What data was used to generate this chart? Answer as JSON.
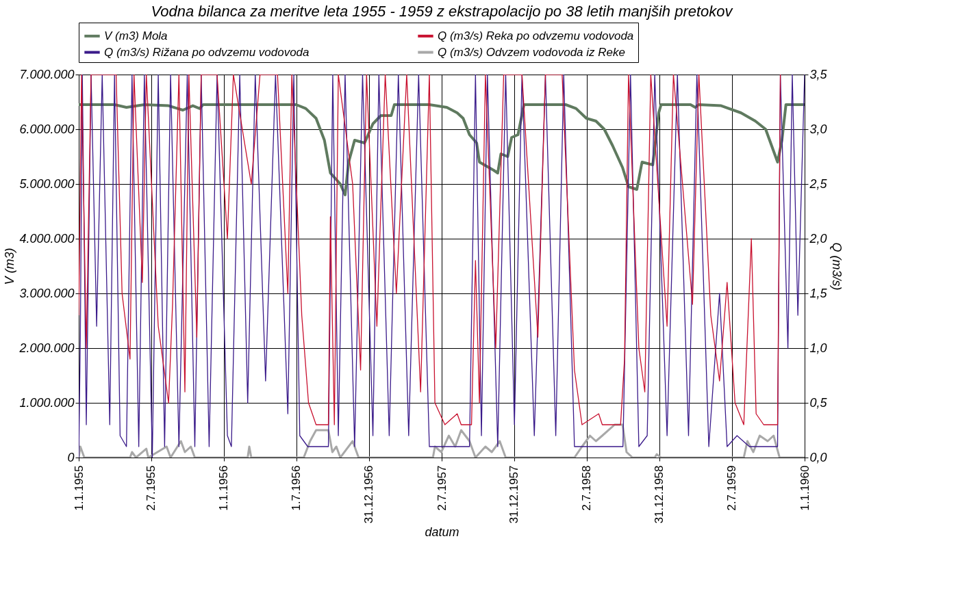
{
  "chart_data": {
    "type": "line",
    "title": "Vodna bilanca za meritve leta 1955 - 1959 z ekstrapolacijo po 38 letih manjših pretokov",
    "xlabel": "datum",
    "ylabel": "V (m3)",
    "y2label": "Q (m3/s)",
    "xlim": [
      "1955-01-01",
      "1960-01-01"
    ],
    "xticks": [
      {
        "value": "1955-01-01",
        "label": "1.1.1955"
      },
      {
        "value": "1955-07-02",
        "label": "2.7.1955"
      },
      {
        "value": "1956-01-01",
        "label": "1.1.1956"
      },
      {
        "value": "1956-07-01",
        "label": "1.7.1956"
      },
      {
        "value": "1956-12-31",
        "label": "31.12.1956"
      },
      {
        "value": "1957-07-02",
        "label": "2.7.1957"
      },
      {
        "value": "1957-12-31",
        "label": "31.12.1957"
      },
      {
        "value": "1958-07-02",
        "label": "2.7.1958"
      },
      {
        "value": "1958-12-31",
        "label": "31.12.1958"
      },
      {
        "value": "1959-07-02",
        "label": "2.7.1959"
      },
      {
        "value": "1960-01-01",
        "label": "1.1.1960"
      }
    ],
    "ylim": [
      0,
      7000000
    ],
    "yticks": [
      {
        "value": 0,
        "label": "0"
      },
      {
        "value": 1000000,
        "label": "1.000.000"
      },
      {
        "value": 2000000,
        "label": "2.000.000"
      },
      {
        "value": 3000000,
        "label": "3.000.000"
      },
      {
        "value": 4000000,
        "label": "4.000.000"
      },
      {
        "value": 5000000,
        "label": "5.000.000"
      },
      {
        "value": 6000000,
        "label": "6.000.000"
      },
      {
        "value": 7000000,
        "label": "7.000.000"
      }
    ],
    "y2lim": [
      0,
      3.5
    ],
    "y2ticks": [
      {
        "value": 0,
        "label": "0,0"
      },
      {
        "value": 0.5,
        "label": "0,5"
      },
      {
        "value": 1,
        "label": "1,0"
      },
      {
        "value": 1.5,
        "label": "1,5"
      },
      {
        "value": 2,
        "label": "2,0"
      },
      {
        "value": 2.5,
        "label": "2,5"
      },
      {
        "value": 3,
        "label": "3,0"
      },
      {
        "value": 3.5,
        "label": "3,5"
      }
    ],
    "grid": true,
    "legend": "top",
    "marker": "none",
    "line_style": "solid",
    "series": [
      {
        "name": "V (m3) Mola",
        "color": "#5f7a5f",
        "x": [
          "1955-01-01",
          "1955-04-01",
          "1955-05-01",
          "1955-06-15",
          "1955-08-15",
          "1955-09-20",
          "1955-10-15",
          "1955-11-01",
          "1955-11-10",
          "1956-07-01",
          "1956-07-25",
          "1956-08-20",
          "1956-09-10",
          "1956-09-25",
          "1956-10-20",
          "1956-11-01",
          "1956-11-10",
          "1956-11-25",
          "1956-12-20",
          "1957-01-10",
          "1957-01-30",
          "1957-02-25",
          "1957-03-05",
          "1957-06-01",
          "1957-07-15",
          "1957-08-10",
          "1957-08-25",
          "1957-09-10",
          "1957-09-28",
          "1957-10-05",
          "1957-11-10",
          "1957-11-20",
          "1957-11-28",
          "1957-12-15",
          "1957-12-25",
          "1958-01-10",
          "1958-01-25",
          "1958-05-10",
          "1958-06-05",
          "1958-07-01",
          "1958-07-25",
          "1958-08-15",
          "1958-09-05",
          "1958-09-30",
          "1958-10-15",
          "1958-11-05",
          "1958-11-18",
          "1958-12-15",
          "1958-12-30",
          "1959-01-05",
          "1959-03-20",
          "1959-04-01",
          "1959-04-10",
          "1959-06-05",
          "1959-07-25",
          "1959-08-30",
          "1959-09-25",
          "1959-10-10",
          "1959-10-25",
          "1959-11-05",
          "1959-11-15",
          "1960-01-01"
        ],
        "values": [
          6450000,
          6450000,
          6400000,
          6450000,
          6430000,
          6350000,
          6430000,
          6380000,
          6450000,
          6450000,
          6380000,
          6200000,
          5800000,
          5200000,
          5000000,
          4800000,
          5400000,
          5800000,
          5750000,
          6100000,
          6250000,
          6250000,
          6450000,
          6450000,
          6400000,
          6300000,
          6200000,
          5900000,
          5750000,
          5400000,
          5250000,
          5200000,
          5550000,
          5500000,
          5850000,
          5900000,
          6450000,
          6450000,
          6380000,
          6200000,
          6150000,
          6000000,
          5700000,
          5300000,
          4950000,
          4900000,
          5400000,
          5350000,
          6300000,
          6450000,
          6450000,
          6400000,
          6450000,
          6430000,
          6300000,
          6150000,
          6000000,
          5700000,
          5400000,
          5800000,
          6450000,
          6450000
        ]
      },
      {
        "name": "Q (m3/s) Reka po odvzemu vodovoda",
        "color": "#c8102e",
        "axis": "y2",
        "x": [
          "1955-01-01",
          "1955-01-08",
          "1955-01-20",
          "1955-02-01",
          "1955-04-05",
          "1955-04-20",
          "1955-05-10",
          "1955-05-20",
          "1955-06-10",
          "1955-06-20",
          "1955-07-20",
          "1955-08-15",
          "1955-08-25",
          "1955-09-10",
          "1955-09-25",
          "1955-10-05",
          "1955-10-25",
          "1955-11-05",
          "1955-12-15",
          "1956-01-10",
          "1956-01-25",
          "1956-03-10",
          "1956-04-01",
          "1956-05-15",
          "1956-06-10",
          "1956-06-20",
          "1956-07-15",
          "1956-08-01",
          "1956-08-20",
          "1956-09-20",
          "1956-09-25",
          "1956-10-05",
          "1956-10-15",
          "1956-11-20",
          "1956-12-10",
          "1956-12-25",
          "1957-01-20",
          "1957-02-10",
          "1957-03-10",
          "1957-04-05",
          "1957-05-10",
          "1957-06-01",
          "1957-06-15",
          "1957-07-10",
          "1957-08-10",
          "1957-08-20",
          "1957-09-15",
          "1957-09-25",
          "1957-10-05",
          "1957-10-20",
          "1957-11-15",
          "1957-12-05",
          "1958-01-20",
          "1958-03-01",
          "1958-03-20",
          "1958-05-01",
          "1958-06-01",
          "1958-06-20",
          "1958-08-01",
          "1958-08-10",
          "1958-09-25",
          "1958-10-05",
          "1958-10-15",
          "1958-11-10",
          "1958-11-25",
          "1958-12-10",
          "1959-01-20",
          "1959-02-05",
          "1959-03-25",
          "1959-04-10",
          "1959-05-10",
          "1959-06-01",
          "1959-06-20",
          "1959-07-10",
          "1959-08-01",
          "1959-08-20",
          "1959-09-01",
          "1959-09-20",
          "1959-10-25",
          "1959-11-01"
        ],
        "values": [
          1.3,
          3.5,
          1.0,
          3.5,
          3.5,
          1.5,
          0.9,
          3.5,
          1.6,
          3.5,
          1.2,
          0.5,
          1.4,
          3.5,
          0.6,
          3.5,
          1.1,
          3.5,
          3.5,
          2.0,
          3.5,
          2.5,
          3.5,
          3.5,
          1.5,
          3.5,
          1.3,
          0.5,
          0.3,
          0.3,
          2.2,
          0.3,
          3.5,
          2.5,
          0.8,
          3.5,
          1.2,
          3.5,
          1.5,
          3.5,
          0.6,
          3.5,
          0.5,
          0.3,
          0.4,
          0.3,
          0.3,
          1.8,
          0.5,
          3.5,
          1.0,
          3.5,
          3.5,
          1.1,
          3.5,
          3.5,
          0.8,
          0.3,
          0.4,
          0.3,
          0.3,
          0.9,
          3.5,
          1.0,
          0.6,
          3.5,
          1.2,
          3.5,
          1.4,
          3.5,
          1.3,
          0.7,
          1.6,
          0.5,
          0.3,
          2.0,
          0.4,
          0.3,
          0.3,
          3.5
        ]
      },
      {
        "name": "Q (m3/s) Rižana po odvzemu vodovoda",
        "color": "#3a1a8a",
        "axis": "y2",
        "x": [
          "1955-01-01",
          "1955-01-05",
          "1955-01-10",
          "1955-01-20",
          "1955-02-01",
          "1955-02-15",
          "1955-03-01",
          "1955-03-20",
          "1955-04-01",
          "1955-04-15",
          "1955-05-01",
          "1955-05-15",
          "1955-06-01",
          "1955-06-15",
          "1955-07-05",
          "1955-07-20",
          "1955-08-05",
          "1955-08-20",
          "1955-09-10",
          "1955-10-01",
          "1955-10-20",
          "1955-11-05",
          "1955-11-25",
          "1955-12-15",
          "1956-01-10",
          "1956-01-20",
          "1956-02-10",
          "1956-03-01",
          "1956-03-20",
          "1956-04-15",
          "1956-05-10",
          "1956-06-10",
          "1956-06-25",
          "1956-07-10",
          "1956-07-30",
          "1956-08-20",
          "1956-09-20",
          "1956-10-01",
          "1956-10-15",
          "1956-11-01",
          "1956-11-25",
          "1956-12-15",
          "1957-01-10",
          "1957-01-25",
          "1957-02-20",
          "1957-03-15",
          "1957-04-10",
          "1957-05-05",
          "1957-06-01",
          "1957-07-01",
          "1957-08-15",
          "1957-09-10",
          "1957-09-25",
          "1957-10-10",
          "1957-10-25",
          "1957-11-20",
          "1957-12-10",
          "1958-01-01",
          "1958-01-20",
          "1958-02-20",
          "1958-03-20",
          "1958-04-15",
          "1958-05-05",
          "1958-06-01",
          "1958-07-10",
          "1958-09-01",
          "1958-10-01",
          "1958-10-20",
          "1958-11-10",
          "1958-12-01",
          "1958-12-20",
          "1959-01-20",
          "1959-02-15",
          "1959-03-15",
          "1959-04-05",
          "1959-05-05",
          "1959-06-01",
          "1959-06-20",
          "1959-07-15",
          "1959-08-15",
          "1959-09-20",
          "1959-10-25",
          "1959-11-01",
          "1959-11-20",
          "1959-12-01",
          "1959-12-15",
          "1960-01-01"
        ],
        "values": [
          0.0,
          1.1,
          3.5,
          0.3,
          3.5,
          1.2,
          3.5,
          0.3,
          3.5,
          0.2,
          0.1,
          3.5,
          0.1,
          3.5,
          0.0,
          3.5,
          0.1,
          3.5,
          0.1,
          3.5,
          0.1,
          3.5,
          0.1,
          3.5,
          0.2,
          0.1,
          3.5,
          0.5,
          3.5,
          0.7,
          3.5,
          0.4,
          3.5,
          0.2,
          0.1,
          0.1,
          0.1,
          3.5,
          0.2,
          3.5,
          0.1,
          3.5,
          0.2,
          3.5,
          0.2,
          3.5,
          0.2,
          3.5,
          0.1,
          0.1,
          0.1,
          0.1,
          3.5,
          0.2,
          3.5,
          0.1,
          3.5,
          0.3,
          3.5,
          0.2,
          3.5,
          0.2,
          3.5,
          0.1,
          0.1,
          0.1,
          0.1,
          3.5,
          0.1,
          0.2,
          3.5,
          0.2,
          3.5,
          0.2,
          3.5,
          0.1,
          1.5,
          0.1,
          0.2,
          0.1,
          0.1,
          0.1,
          3.5,
          1.0,
          3.5,
          1.3,
          3.5
        ]
      },
      {
        "name": "Q (m3/s) Odvzem vodovoda iz Reke",
        "color": "#a8a8a8",
        "axis": "y2",
        "x": [
          "1955-01-01",
          "1955-01-05",
          "1955-01-15",
          "1955-05-10",
          "1955-05-15",
          "1955-05-25",
          "1955-06-20",
          "1955-06-25",
          "1955-08-10",
          "1955-08-20",
          "1955-09-15",
          "1955-09-25",
          "1955-10-10",
          "1955-10-20",
          "1956-03-01",
          "1956-03-05",
          "1956-03-10",
          "1956-07-20",
          "1956-08-05",
          "1956-08-20",
          "1956-09-20",
          "1956-09-30",
          "1956-10-10",
          "1956-10-20",
          "1956-11-20",
          "1956-12-05",
          "1957-06-10",
          "1957-06-15",
          "1957-07-01",
          "1957-07-20",
          "1957-08-05",
          "1957-08-20",
          "1957-09-10",
          "1957-09-25",
          "1957-10-20",
          "1957-11-05",
          "1957-11-25",
          "1957-12-10",
          "1958-06-01",
          "1958-06-20",
          "1958-07-10",
          "1958-07-25",
          "1958-08-10",
          "1958-09-10",
          "1958-09-30",
          "1958-10-10",
          "1958-10-25",
          "1958-12-20",
          "1958-12-25",
          "1959-01-05",
          "1959-08-01",
          "1959-08-10",
          "1959-08-25",
          "1959-09-10",
          "1959-09-30",
          "1959-10-15",
          "1959-10-30",
          "1960-01-01"
        ],
        "values": [
          0.0,
          0.1,
          0.0,
          0.0,
          0.05,
          0.0,
          0.08,
          0.0,
          0.1,
          0.0,
          0.15,
          0.05,
          0.1,
          0.0,
          0.0,
          0.1,
          0.0,
          0.0,
          0.15,
          0.25,
          0.25,
          0.05,
          0.1,
          0.0,
          0.15,
          0.0,
          0.0,
          0.1,
          0.05,
          0.2,
          0.1,
          0.25,
          0.15,
          0.0,
          0.1,
          0.05,
          0.15,
          0.0,
          0.0,
          0.1,
          0.2,
          0.15,
          0.2,
          0.3,
          0.3,
          0.05,
          0.0,
          0.0,
          0.03,
          0.0,
          0.0,
          0.15,
          0.05,
          0.2,
          0.15,
          0.2,
          0.0,
          0.0
        ]
      }
    ]
  }
}
